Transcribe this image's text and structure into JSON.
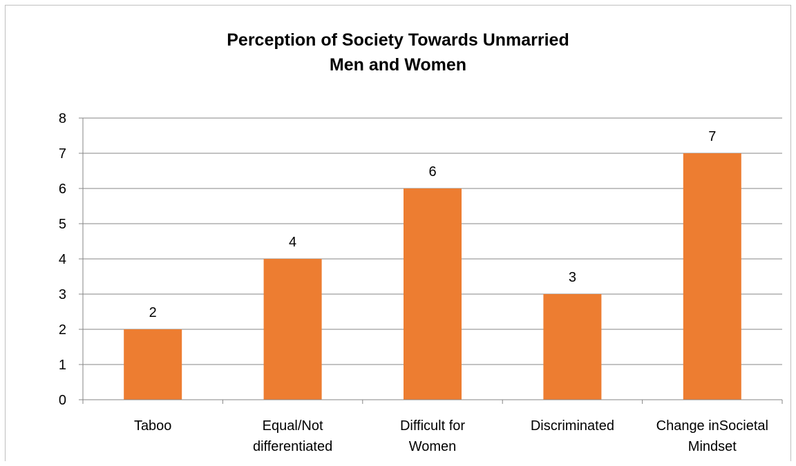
{
  "chart_data": {
    "type": "bar",
    "title": "Perception of Society Towards Unmarried Men and Women",
    "title_lines": [
      "Perception of Society Towards Unmarried",
      "Men and Women"
    ],
    "categories": [
      "Taboo",
      "Equal/Not differentiated",
      "Difficult for Women",
      "Discriminated",
      "Change inSocietal Mindset"
    ],
    "category_lines": [
      [
        "Taboo"
      ],
      [
        "Equal/Not",
        "differentiated"
      ],
      [
        "Difficult for",
        "Women"
      ],
      [
        "Discriminated"
      ],
      [
        "Change inSocietal",
        "Mindset"
      ]
    ],
    "values": [
      2,
      4,
      6,
      3,
      7
    ],
    "data_labels": [
      "2",
      "4",
      "6",
      "3",
      "7"
    ],
    "xlabel": "",
    "ylabel": "",
    "ylim": [
      0,
      8
    ],
    "yticks": [
      "0",
      "1",
      "2",
      "3",
      "4",
      "5",
      "6",
      "7",
      "8"
    ],
    "grid": true,
    "legend": "none",
    "bar_color": "#ed7d31",
    "grid_color": "#868686"
  }
}
